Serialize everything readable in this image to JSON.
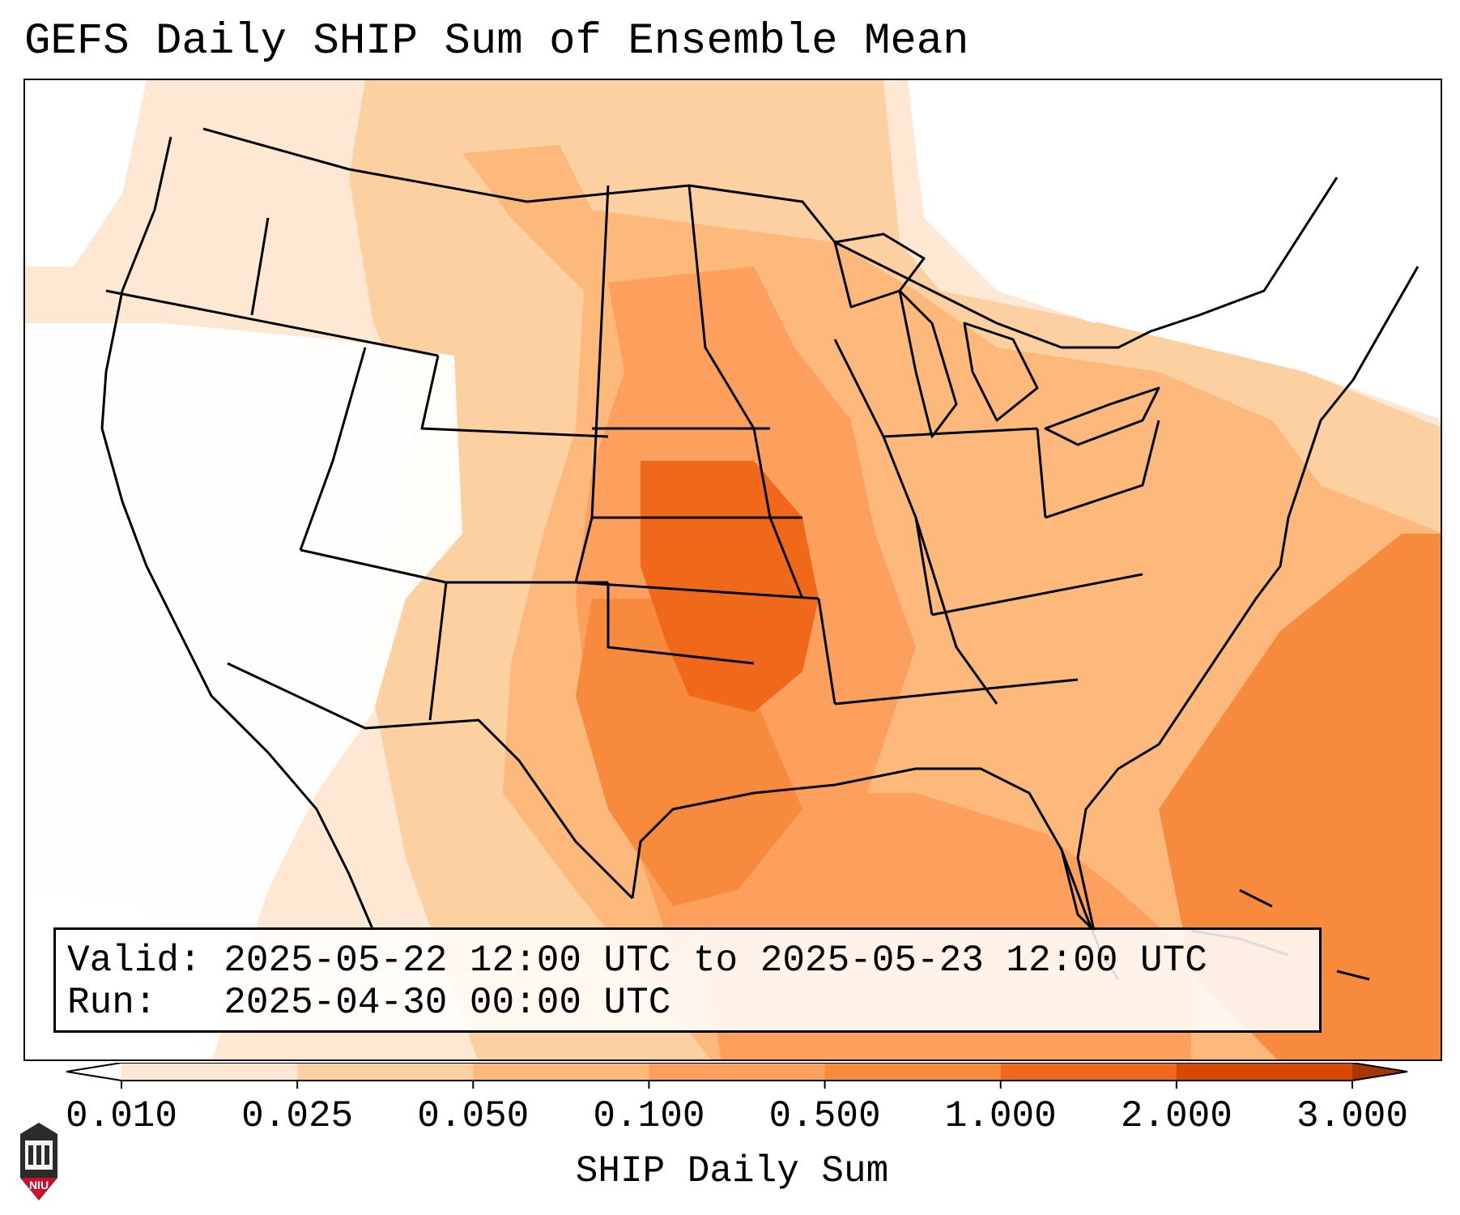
{
  "title": "GEFS Daily SHIP Sum of Ensemble Mean",
  "valid_label": "Valid:",
  "valid_value": "2025-05-22 12:00 UTC to 2025-05-23 12:00 UTC",
  "run_label": "Run:",
  "run_value": "2025-04-30 00:00 UTC",
  "colorbar": {
    "label": "SHIP Daily Sum",
    "ticks": [
      "0.010",
      "0.025",
      "0.050",
      "0.100",
      "0.500",
      "1.000",
      "2.000",
      "3.000"
    ],
    "colors": [
      "#fee8d3",
      "#fdd0a2",
      "#fdb97c",
      "#fda05d",
      "#f88a3e",
      "#f0691a",
      "#d94801"
    ],
    "extend": "both"
  },
  "logo": {
    "text": "NIU",
    "colors": {
      "red": "#c8102e",
      "dark": "#333333"
    }
  }
}
